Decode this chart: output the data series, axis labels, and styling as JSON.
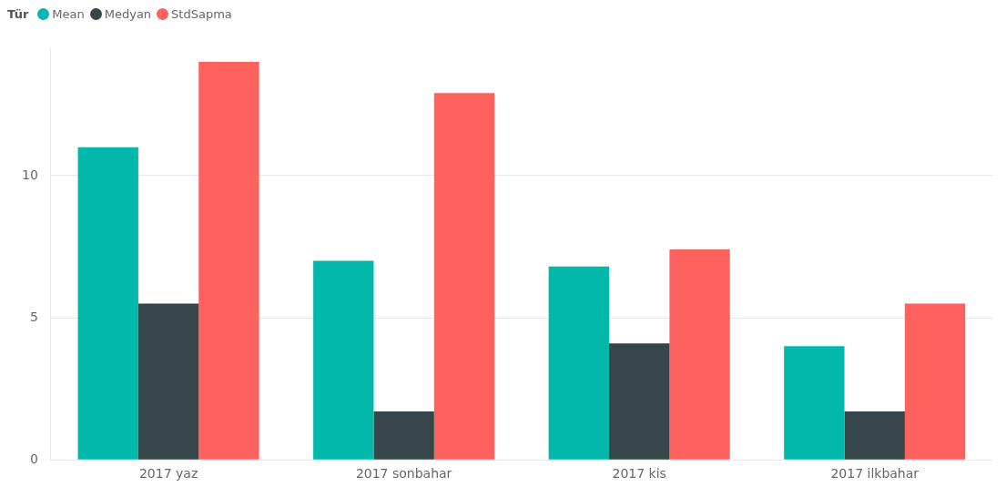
{
  "chart_data": {
    "type": "bar",
    "legend_title": "Tür",
    "categories": [
      "2017 yaz",
      "2017 sonbahar",
      "2017 kis",
      "2017 ilkbahar"
    ],
    "series": [
      {
        "name": "Mean",
        "color": "#01b8aa",
        "values": [
          11.0,
          7.0,
          6.8,
          4.0
        ]
      },
      {
        "name": "Medyan",
        "color": "#374649",
        "values": [
          5.5,
          1.7,
          4.1,
          1.7
        ]
      },
      {
        "name": "StdSapma",
        "color": "#fd625e",
        "values": [
          14.0,
          12.9,
          7.4,
          5.5
        ]
      }
    ],
    "ylim": [
      0,
      14.5
    ],
    "yticks": [
      0,
      5,
      10
    ],
    "grid": "y",
    "legend": "top left"
  }
}
